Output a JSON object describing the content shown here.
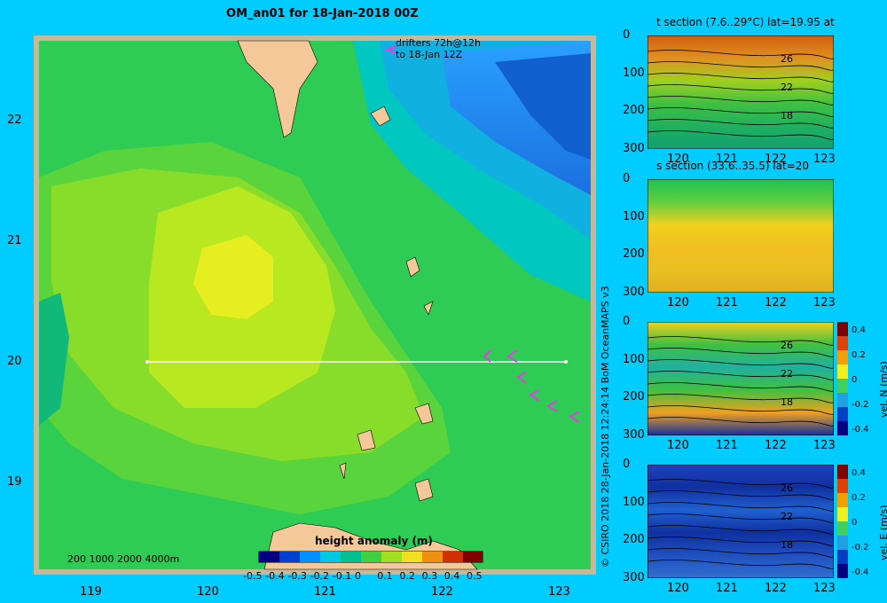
{
  "title": "OM_an01 for 18-Jan-2018 00Z",
  "drifters": {
    "line1": "drifters 72h@12h",
    "line2": "to 18-Jan 12Z"
  },
  "map": {
    "x_ticks": [
      "119",
      "120",
      "121",
      "122",
      "123"
    ],
    "y_ticks": [
      "22",
      "21",
      "20",
      "19"
    ],
    "scale_bar": "200  1000  2000  4000m",
    "legend": {
      "title": "height anomaly (m)",
      "ticks": [
        "-0.5",
        "-0.4",
        "-0.3",
        "-0.2",
        "-0.1",
        "0",
        "0.1",
        "0.2",
        "0.3",
        "0.4",
        "0.5"
      ]
    }
  },
  "panels": [
    {
      "title": "t section (7.6..29°C) lat=19.95 at",
      "y_ticks": [
        "0",
        "100",
        "200",
        "300"
      ],
      "x_ticks": [
        "120",
        "121",
        "122",
        "123"
      ],
      "contours": [
        "26",
        "22",
        "18"
      ]
    },
    {
      "title": "s section (33.6..35.5) lat=20",
      "y_ticks": [
        "0",
        "100",
        "200",
        "300"
      ],
      "x_ticks": [
        "120",
        "121",
        "122",
        "123"
      ],
      "contours": []
    },
    {
      "title": "",
      "y_ticks": [
        "0",
        "100",
        "200",
        "300"
      ],
      "x_ticks": [
        "120",
        "121",
        "122",
        "123"
      ],
      "contours": [
        "26",
        "22",
        "18"
      ],
      "colorbar": {
        "label": "vel. N (m/s)",
        "ticks": [
          "0.4",
          "0.2",
          "0",
          "-0.2",
          "-0.4"
        ]
      }
    },
    {
      "title": "",
      "y_ticks": [
        "0",
        "100",
        "200",
        "300"
      ],
      "x_ticks": [
        "120",
        "121",
        "122",
        "123"
      ],
      "contours": [
        "26",
        "22",
        "18"
      ],
      "colorbar": {
        "label": "vel. E (m/s)",
        "ticks": [
          "0.4",
          "0.2",
          "0",
          "-0.2",
          "-0.4"
        ]
      }
    }
  ],
  "credit": "© CSIRO 2018   28-Jan-2018 12:24:14 BoM OceanMAPS v3",
  "colors": {
    "background": "#00ccff",
    "land": "#f5c89a",
    "section_line": "#ffffff",
    "drifter": "#e040e0"
  }
}
